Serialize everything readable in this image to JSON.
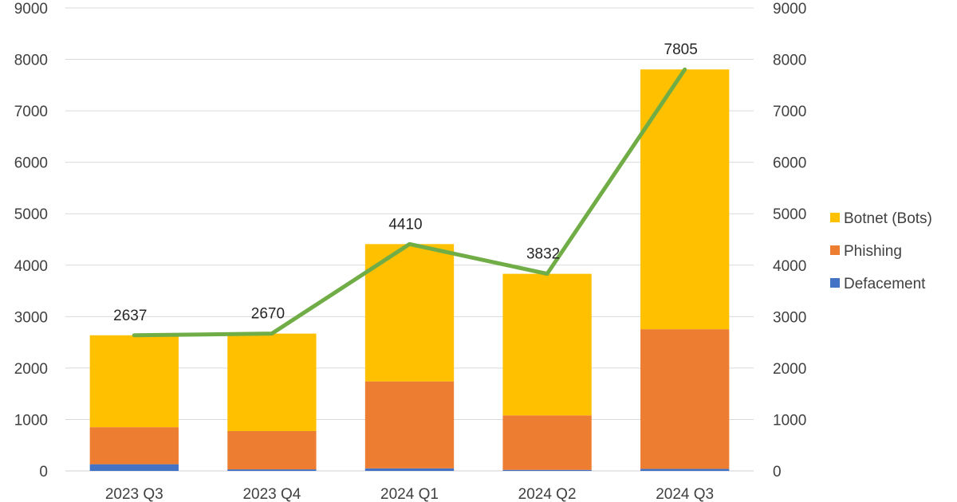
{
  "chart_data": {
    "type": "bar",
    "stacked": true,
    "categories": [
      "2023 Q3",
      "2023 Q4",
      "2024 Q1",
      "2024 Q2",
      "2024 Q3"
    ],
    "series": [
      {
        "name": "Defacement",
        "values": [
          130,
          30,
          50,
          20,
          40
        ],
        "color": "#4472c4"
      },
      {
        "name": "Phishing",
        "values": [
          720,
          745,
          1690,
          1060,
          2715
        ],
        "color": "#ed7d31"
      },
      {
        "name": "Botnet (Bots)",
        "values": [
          1787,
          1895,
          2670,
          2752,
          5050
        ],
        "color": "#ffc000"
      }
    ],
    "total_line": {
      "values": [
        2637,
        2670,
        4410,
        3832,
        7805
      ],
      "labels": [
        "2637",
        "2670",
        "4410",
        "3832",
        "7805"
      ],
      "color": "#70ad47"
    },
    "y_ticks": [
      "0",
      "1000",
      "2000",
      "3000",
      "4000",
      "5000",
      "6000",
      "7000",
      "8000",
      "9000"
    ],
    "y_ticks_right": [
      "0",
      "1000",
      "2000",
      "3000",
      "4000",
      "5000",
      "6000",
      "7000",
      "8000",
      "9000"
    ],
    "ylim": [
      0,
      9000
    ],
    "y2lim": [
      0,
      9000
    ],
    "grid": true,
    "legend": {
      "position": "right",
      "order": [
        "Botnet (Bots)",
        "Phishing",
        "Defacement"
      ]
    }
  }
}
